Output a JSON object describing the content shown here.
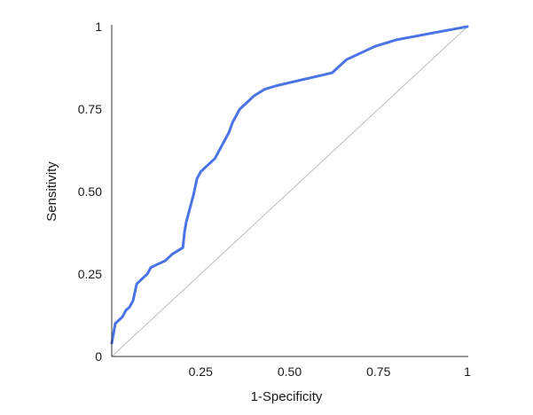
{
  "chart_data": {
    "type": "line",
    "title": "",
    "xlabel": "1-Specificity",
    "ylabel": "Sensitivity",
    "xlim": [
      0,
      1
    ],
    "ylim": [
      0,
      1
    ],
    "x_ticks": [
      {
        "value": 0.25,
        "label": "0.25"
      },
      {
        "value": 0.5,
        "label": "0.50"
      },
      {
        "value": 0.75,
        "label": "0.75"
      },
      {
        "value": 1,
        "label": "1"
      }
    ],
    "y_ticks": [
      {
        "value": 0,
        "label": "0"
      },
      {
        "value": 0.25,
        "label": "0.25"
      },
      {
        "value": 0.5,
        "label": "0.50"
      },
      {
        "value": 0.75,
        "label": "0.75"
      },
      {
        "value": 1,
        "label": "1"
      }
    ],
    "grid": false,
    "legend": "none",
    "colors": {
      "curve": "#4a74e6",
      "reference": "#bdbdbd",
      "axis": "#333333"
    },
    "series": [
      {
        "role": "roc-curve",
        "points": [
          [
            0.0,
            0.04
          ],
          [
            0.005,
            0.07
          ],
          [
            0.01,
            0.1
          ],
          [
            0.02,
            0.11
          ],
          [
            0.03,
            0.12
          ],
          [
            0.04,
            0.14
          ],
          [
            0.05,
            0.15
          ],
          [
            0.06,
            0.17
          ],
          [
            0.07,
            0.22
          ],
          [
            0.08,
            0.23
          ],
          [
            0.09,
            0.24
          ],
          [
            0.1,
            0.25
          ],
          [
            0.11,
            0.27
          ],
          [
            0.13,
            0.28
          ],
          [
            0.15,
            0.29
          ],
          [
            0.17,
            0.31
          ],
          [
            0.2,
            0.33
          ],
          [
            0.205,
            0.38
          ],
          [
            0.21,
            0.41
          ],
          [
            0.22,
            0.45
          ],
          [
            0.23,
            0.49
          ],
          [
            0.24,
            0.54
          ],
          [
            0.25,
            0.56
          ],
          [
            0.27,
            0.58
          ],
          [
            0.29,
            0.6
          ],
          [
            0.3,
            0.62
          ],
          [
            0.31,
            0.64
          ],
          [
            0.32,
            0.66
          ],
          [
            0.33,
            0.68
          ],
          [
            0.34,
            0.71
          ],
          [
            0.35,
            0.73
          ],
          [
            0.36,
            0.75
          ],
          [
            0.38,
            0.77
          ],
          [
            0.4,
            0.79
          ],
          [
            0.43,
            0.81
          ],
          [
            0.46,
            0.82
          ],
          [
            0.5,
            0.83
          ],
          [
            0.54,
            0.84
          ],
          [
            0.58,
            0.85
          ],
          [
            0.62,
            0.86
          ],
          [
            0.64,
            0.88
          ],
          [
            0.66,
            0.9
          ],
          [
            0.7,
            0.92
          ],
          [
            0.74,
            0.94
          ],
          [
            0.8,
            0.96
          ],
          [
            0.85,
            0.97
          ],
          [
            0.9,
            0.98
          ],
          [
            0.95,
            0.99
          ],
          [
            1.0,
            1.0
          ]
        ]
      },
      {
        "role": "reference-diagonal",
        "points": [
          [
            0,
            0
          ],
          [
            1,
            1
          ]
        ]
      }
    ]
  }
}
